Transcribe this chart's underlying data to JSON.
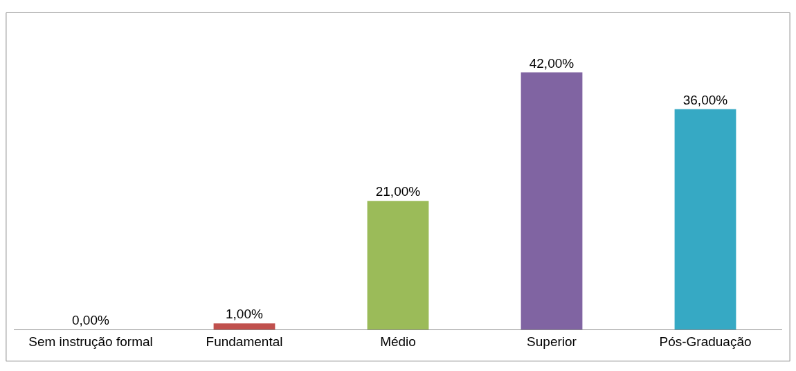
{
  "chart_data": {
    "type": "bar",
    "categories": [
      "Sem instrução formal",
      "Fundamental",
      "Médio",
      "Superior",
      "Pós-Graduação"
    ],
    "values": [
      0,
      1,
      21,
      42,
      36
    ],
    "colors": [
      "#4f81bd",
      "#c0504d",
      "#9bbb59",
      "#8064a2",
      "#36a9c4"
    ],
    "value_labels": [
      "0,00%",
      "1,00%",
      "21,00%",
      "42,00%",
      "36,00%"
    ]
  }
}
